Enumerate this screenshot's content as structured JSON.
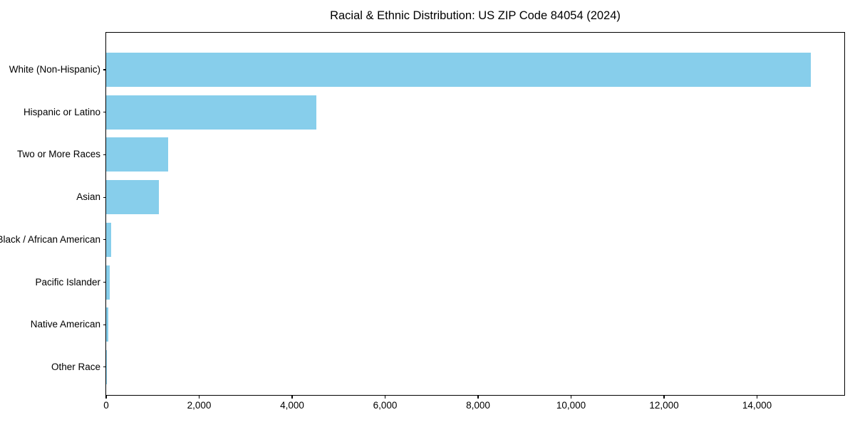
{
  "chart_data": {
    "type": "bar",
    "orientation": "horizontal",
    "title": "Racial & Ethnic Distribution: US ZIP Code 84054 (2024)",
    "categories": [
      "White (Non-Hispanic)",
      "Hispanic or Latino",
      "Two or More Races",
      "Asian",
      "Black / African American",
      "Pacific Islander",
      "Native American",
      "Other Race"
    ],
    "values": [
      15150,
      4520,
      1330,
      1140,
      110,
      78,
      40,
      8
    ],
    "xlabel": "",
    "ylabel": "",
    "xlim": [
      0,
      15908
    ],
    "xticks": [
      0,
      2000,
      4000,
      6000,
      8000,
      10000,
      12000,
      14000
    ],
    "xtick_labels": [
      "0",
      "2,000",
      "4,000",
      "6,000",
      "8,000",
      "10,000",
      "12,000",
      "14,000"
    ],
    "bar_color": "#87CEEB",
    "grid": false,
    "legend": null,
    "background_color": "#ffffff",
    "spine_color": "#000000",
    "text_color": "#000000"
  }
}
